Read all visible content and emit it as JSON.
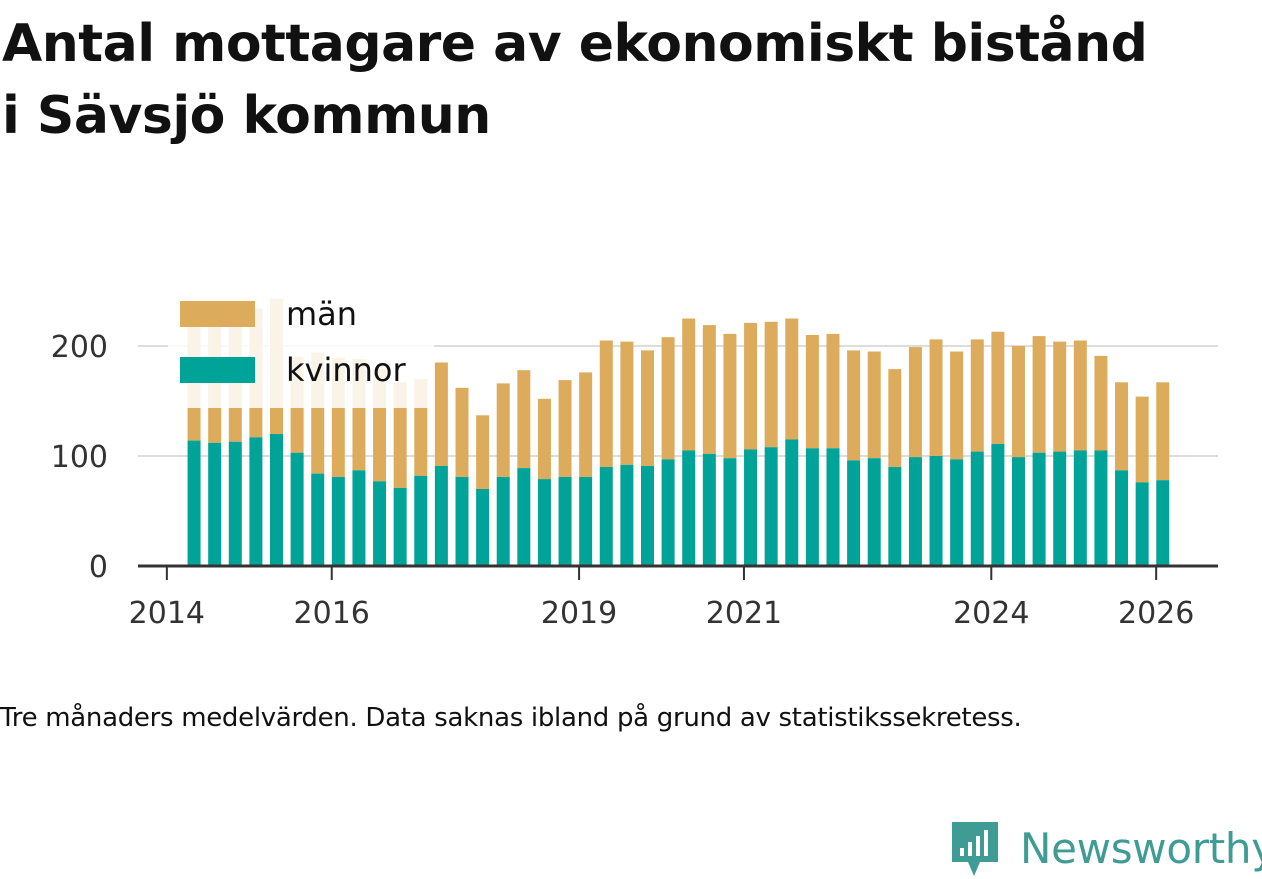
{
  "title_line1": "Antal mottagare av ekonomiskt bistånd",
  "title_line2": "i Sävsjö kommun",
  "caption": "Tre månaders medelvärden. Data saknas ibland på grund av statistikssekretess.",
  "brand": {
    "name": "Newsworthy",
    "icon": "newsworthy-logo-icon"
  },
  "colors": {
    "men": "#dcac5c",
    "women": "#00a398",
    "grid": "#dddddd",
    "axis": "#333333",
    "text": "#333333",
    "brand": "#3e9c95"
  },
  "chart_data": {
    "type": "bar",
    "stacked": true,
    "xlabel": "",
    "ylabel": "",
    "ylim": [
      0,
      240
    ],
    "yticks": [
      0,
      100,
      200
    ],
    "xlim": [
      2013.65,
      2026.75
    ],
    "xticks": [
      2014,
      2016,
      2019,
      2021,
      2024,
      2026
    ],
    "grid": true,
    "legend_position": "top-left",
    "x": [
      2014.33,
      2014.58,
      2014.83,
      2015.08,
      2015.33,
      2015.58,
      2015.83,
      2016.08,
      2016.33,
      2016.58,
      2016.83,
      2017.08,
      2017.33,
      2017.58,
      2017.83,
      2018.08,
      2018.33,
      2018.58,
      2018.83,
      2019.08,
      2019.33,
      2019.58,
      2019.83,
      2020.08,
      2020.33,
      2020.58,
      2020.83,
      2021.08,
      2021.33,
      2021.58,
      2021.83,
      2022.08,
      2022.33,
      2022.58,
      2022.83,
      2023.08,
      2023.33,
      2023.58,
      2023.83,
      2024.08,
      2024.33,
      2024.58,
      2024.83,
      2025.08,
      2025.33,
      2025.58,
      2025.83,
      2026.08
    ],
    "series": [
      {
        "name": "kvinnor",
        "values": [
          114,
          112,
          113,
          117,
          120,
          103,
          84,
          81,
          87,
          77,
          71,
          82,
          91,
          81,
          70,
          81,
          89,
          79,
          81,
          81,
          90,
          92,
          91,
          97,
          105,
          102,
          98,
          106,
          108,
          115,
          107,
          107,
          96,
          98,
          90,
          99,
          100,
          97,
          104,
          111,
          99,
          103,
          104,
          105,
          105,
          87,
          76,
          78
        ]
      },
      {
        "name": "män",
        "values": [
          119,
          121,
          120,
          117,
          123,
          87,
          110,
          108,
          101,
          102,
          96,
          88,
          94,
          81,
          67,
          85,
          89,
          73,
          88,
          95,
          115,
          112,
          105,
          111,
          120,
          117,
          113,
          115,
          114,
          110,
          103,
          104,
          100,
          97,
          89,
          100,
          106,
          98,
          102,
          102,
          101,
          106,
          100,
          100,
          86,
          80,
          78,
          89
        ]
      }
    ],
    "legend": [
      "män",
      "kvinnor"
    ]
  }
}
